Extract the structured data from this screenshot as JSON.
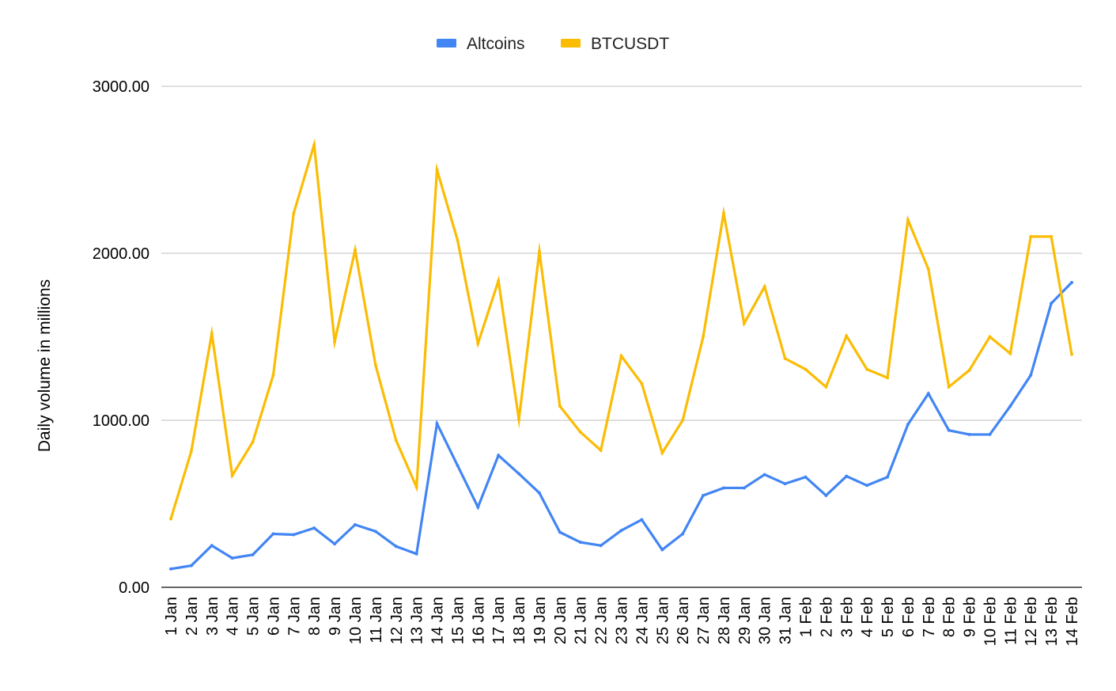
{
  "chart_data": {
    "type": "line",
    "title": "",
    "xlabel": "",
    "ylabel": "Daily volume in millions",
    "ylim": [
      0,
      3000
    ],
    "yticks": [
      "0.00",
      "1000.00",
      "2000.00",
      "3000.00"
    ],
    "ytick_values": [
      0,
      1000,
      2000,
      3000
    ],
    "grid": true,
    "legend": "top-center",
    "categories": [
      "1 Jan",
      "2 Jan",
      "3 Jan",
      "4 Jan",
      "5 Jan",
      "6 Jan",
      "7 Jan",
      "8 Jan",
      "9 Jan",
      "10 Jan",
      "11 Jan",
      "12 Jan",
      "13 Jan",
      "14 Jan",
      "15 Jan",
      "16 Jan",
      "17 Jan",
      "18 Jan",
      "19 Jan",
      "20 Jan",
      "21 Jan",
      "22 Jan",
      "23 Jan",
      "24 Jan",
      "25 Jan",
      "26 Jan",
      "27 Jan",
      "28 Jan",
      "29 Jan",
      "30 Jan",
      "31 Jan",
      "1 Feb",
      "2 Feb",
      "3 Feb",
      "4 Feb",
      "5 Feb",
      "6 Feb",
      "7 Feb",
      "8 Feb",
      "9 Feb",
      "10 Feb",
      "11 Feb",
      "12 Feb",
      "13 Feb",
      "14 Feb"
    ],
    "series": [
      {
        "name": "Altcoins",
        "color": "#4285f4",
        "values": [
          110,
          130,
          250,
          175,
          195,
          320,
          315,
          355,
          260,
          375,
          335,
          245,
          200,
          980,
          730,
          480,
          790,
          680,
          565,
          330,
          270,
          250,
          340,
          405,
          225,
          320,
          550,
          595,
          595,
          675,
          620,
          660,
          550,
          665,
          610,
          660,
          975,
          1160,
          940,
          915,
          915,
          1085,
          1270,
          1700,
          1825
        ]
      },
      {
        "name": "BTCUSDT",
        "color": "#fbbc04",
        "values": [
          410,
          815,
          1520,
          670,
          870,
          1270,
          2240,
          2650,
          1470,
          2020,
          1330,
          880,
          600,
          2500,
          2080,
          1460,
          1835,
          1005,
          2010,
          1085,
          930,
          820,
          1385,
          1220,
          805,
          1000,
          1500,
          2240,
          1580,
          1800,
          1370,
          1305,
          1200,
          1505,
          1305,
          1255,
          2200,
          1905,
          1200,
          1300,
          1500,
          1400,
          2100,
          2100,
          1395
        ]
      }
    ]
  }
}
